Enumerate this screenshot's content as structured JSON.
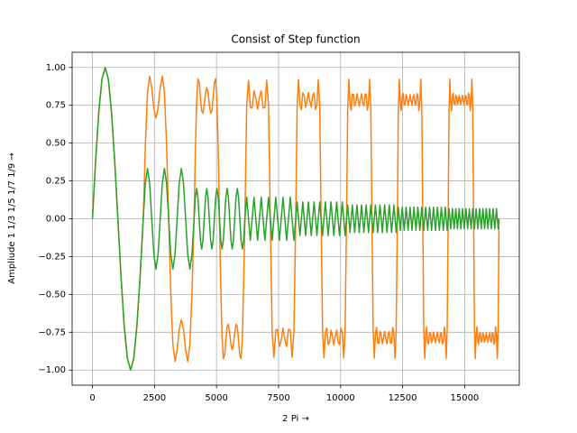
{
  "chart_data": {
    "type": "line",
    "title": "Consist of Step function",
    "title_color": "#0000ff",
    "xlabel": "2 Pi →",
    "ylabel": "Ampliude 1 1/3 1/5 1/7 1/9 →",
    "grid": true,
    "xlim": [
      -819,
      17202
    ],
    "ylim": [
      -1.1,
      1.1
    ],
    "xticks": [
      0,
      2500,
      5000,
      7500,
      10000,
      12500,
      15000
    ],
    "yticks": [
      {
        "value": -1,
        "label": "−1.00"
      },
      {
        "value": -0.75,
        "label": "−0.75"
      },
      {
        "value": -0.5,
        "label": "−0.50"
      },
      {
        "value": -0.25,
        "label": "−0.25"
      },
      {
        "value": 0,
        "label": "0.00"
      },
      {
        "value": 0.25,
        "label": "0.25"
      },
      {
        "value": 0.5,
        "label": "0.50"
      },
      {
        "value": 0.75,
        "label": "0.75"
      },
      {
        "value": 1,
        "label": "1.00"
      }
    ],
    "x": [
      0,
      128,
      256,
      384,
      512,
      640,
      768,
      896,
      1024,
      1152,
      1280,
      1408,
      1536,
      1664,
      1792,
      1920,
      2048,
      2133,
      2219,
      2304,
      2389,
      2475,
      2560,
      2645,
      2731,
      2816,
      2901,
      2987,
      3072,
      3157,
      3243,
      3328,
      3413,
      3499,
      3584,
      3669,
      3755,
      3840,
      3925,
      4011,
      4096,
      4147,
      4198,
      4250,
      4301,
      4352,
      4403,
      4454,
      4506,
      4557,
      4608,
      4659,
      4710,
      4762,
      4813,
      4864,
      4915,
      4966,
      5018,
      5069,
      5120,
      5171,
      5222,
      5274,
      5325,
      5376,
      5427,
      5478,
      5530,
      5581,
      5632,
      5683,
      5734,
      5786,
      5837,
      5888,
      5939,
      5990,
      6042,
      6093,
      6144,
      6217,
      6290,
      6363,
      6437,
      6510,
      6583,
      6656,
      6729,
      6802,
      6875,
      6949,
      7022,
      7095,
      7168,
      7241,
      7314,
      7387,
      7461,
      7534,
      7607,
      7680,
      7753,
      7826,
      7899,
      7973,
      8046,
      8119,
      8192,
      8249,
      8306,
      8363,
      8420,
      8476,
      8533,
      8590,
      8647,
      8704,
      8761,
      8818,
      8875,
      8932,
      8988,
      9045,
      9102,
      9159,
      9216,
      9273,
      9330,
      9387,
      9444,
      9500,
      9557,
      9614,
      9671,
      9728,
      9785,
      9842,
      9899,
      9956,
      10012,
      10069,
      10126,
      10183,
      10240,
      10287,
      10333,
      10380,
      10426,
      10473,
      10519,
      10566,
      10612,
      10659,
      10705,
      10752,
      10799,
      10845,
      10892,
      10938,
      10985,
      11031,
      11078,
      11124,
      11171,
      11217,
      11264,
      11311,
      11357,
      11404,
      11450,
      11497,
      11543,
      11590,
      11636,
      11683,
      11729,
      11776,
      11823,
      11869,
      11916,
      11962,
      12009,
      12055,
      12102,
      12148,
      12195,
      12241,
      12288,
      12327,
      12367,
      12406,
      12446,
      12485,
      12524,
      12564,
      12603,
      12642,
      12682,
      12721,
      12761,
      12800,
      12839,
      12879,
      12918,
      12958,
      12997,
      13036,
      13076,
      13115,
      13154,
      13194,
      13233,
      13273,
      13312,
      13351,
      13391,
      13430,
      13470,
      13509,
      13548,
      13588,
      13627,
      13666,
      13706,
      13745,
      13785,
      13824,
      13863,
      13903,
      13942,
      13982,
      14021,
      14060,
      14100,
      14139,
      14178,
      14218,
      14257,
      14297,
      14336,
      14370,
      14404,
      14438,
      14473,
      14507,
      14541,
      14575,
      14609,
      14643,
      14677,
      14711,
      14746,
      14780,
      14814,
      14848,
      14882,
      14916,
      14950,
      14985,
      15019,
      15053,
      15087,
      15121,
      15155,
      15189,
      15223,
      15258,
      15292,
      15326,
      15360,
      15394,
      15428,
      15462,
      15497,
      15531,
      15565,
      15599,
      15633,
      15667,
      15701,
      15735,
      15770,
      15804,
      15838,
      15872,
      15906,
      15940,
      15974,
      16009,
      16043,
      16077,
      16111,
      16145,
      16179,
      16213,
      16247,
      16282,
      16316,
      16350,
      16384
    ],
    "series": [
      {
        "color": "#ff7f0e",
        "values": [
          0,
          0.3827,
          0.7071,
          0.9239,
          1,
          0.9239,
          0.7071,
          0.3827,
          0,
          -0.3827,
          -0.7071,
          -0.9239,
          -1,
          -0.9239,
          -0.7071,
          -0.3827,
          0,
          0.4945,
          0.8333,
          0.9428,
          0.866,
          0.7302,
          0.6667,
          0.7302,
          0.866,
          0.9428,
          0.8333,
          0.4945,
          0,
          -0.4945,
          -0.8333,
          -0.9428,
          -0.866,
          -0.7302,
          -0.6667,
          -0.7302,
          -0.866,
          -0.9428,
          -0.8333,
          -0.4945,
          0,
          0.4491,
          0.7787,
          0.9246,
          0.9048,
          0.8014,
          0.712,
          0.6975,
          0.7552,
          0.8321,
          0.8667,
          0.8321,
          0.7552,
          0.6975,
          0.712,
          0.8014,
          0.9048,
          0.9246,
          0.7787,
          0.4491,
          0,
          -0.4491,
          -0.7787,
          -0.9246,
          -0.9048,
          -0.8014,
          -0.712,
          -0.6975,
          -0.7552,
          -0.8321,
          -0.8667,
          -0.8321,
          -0.7552,
          -0.6975,
          -0.712,
          -0.8014,
          -0.9048,
          -0.9246,
          -0.7787,
          -0.4491,
          0,
          0.7534,
          0.9153,
          0.7364,
          0.7314,
          0.845,
          0.8011,
          0.7238,
          0.8011,
          0.845,
          0.7314,
          0.7364,
          0.9153,
          0.7534,
          0,
          -0.7534,
          -0.9153,
          -0.7364,
          -0.7314,
          -0.845,
          -0.8011,
          -0.7238,
          -0.8011,
          -0.845,
          -0.7314,
          -0.7364,
          -0.9153,
          -0.7534,
          0,
          0.7388,
          0.9195,
          0.7508,
          0.7224,
          0.8311,
          0.8165,
          0.7366,
          0.7758,
          0.8349,
          0.7758,
          0.7366,
          0.8165,
          0.8311,
          0.7224,
          0.7508,
          0.9195,
          0.7388,
          0,
          -0.7388,
          -0.9195,
          -0.7508,
          -0.7224,
          -0.8311,
          -0.8165,
          -0.7366,
          -0.7758,
          -0.8349,
          -0.7758,
          -0.7366,
          -0.8165,
          -0.8311,
          -0.7224,
          -0.7508,
          -0.9195,
          -0.7388,
          0,
          0.7295,
          0.9216,
          0.7601,
          0.7177,
          0.8218,
          0.8238,
          0.7457,
          0.765,
          0.8264,
          0.7918,
          0.744,
          0.7918,
          0.8264,
          0.765,
          0.7457,
          0.8238,
          0.8218,
          0.7177,
          0.7601,
          0.9216,
          0.7295,
          0,
          -0.7295,
          -0.9216,
          -0.7601,
          -0.7177,
          -0.8218,
          -0.8238,
          -0.7457,
          -0.765,
          -0.8264,
          -0.7918,
          -0.744,
          -0.7918,
          -0.8264,
          -0.765,
          -0.7457,
          -0.8238,
          -0.8218,
          -0.7177,
          -0.7601,
          -0.9216,
          -0.7295,
          0,
          0.7228,
          0.9227,
          0.7669,
          0.7153,
          0.8152,
          0.8277,
          0.7521,
          0.7594,
          0.8202,
          0.7998,
          0.75,
          0.7807,
          0.8209,
          0.7807,
          0.75,
          0.7998,
          0.8202,
          0.7594,
          0.7521,
          0.8277,
          0.8152,
          0.7153,
          0.7669,
          0.9227,
          0.7228,
          0,
          -0.7228,
          -0.9227,
          -0.7669,
          -0.7153,
          -0.8152,
          -0.8277,
          -0.7521,
          -0.7594,
          -0.8202,
          -0.7998,
          -0.75,
          -0.7807,
          -0.8209,
          -0.7807,
          -0.75,
          -0.7998,
          -0.8202,
          -0.7594,
          -0.7521,
          -0.8277,
          -0.8152,
          -0.7153,
          -0.7669,
          -0.9227,
          -0.7228,
          0,
          0.7179,
          0.9237,
          0.7716,
          0.7137,
          0.8105,
          0.8302,
          0.7568,
          0.7558,
          0.8154,
          0.8044,
          0.7546,
          0.7748,
          0.8164,
          0.7888,
          0.7542,
          0.7888,
          0.8164,
          0.7748,
          0.7546,
          0.8044,
          0.8154,
          0.7558,
          0.7568,
          0.8302,
          0.8105,
          0.7137,
          0.7716,
          0.9237,
          0.7179,
          0,
          -0.7179,
          -0.9237,
          -0.7716,
          -0.7137,
          -0.8105,
          -0.8302,
          -0.7568,
          -0.7558,
          -0.8154,
          -0.8044,
          -0.7546,
          -0.7748,
          -0.8164,
          -0.7888,
          -0.7542,
          -0.7888,
          -0.8164,
          -0.7748,
          -0.7546,
          -0.8044,
          -0.8154,
          -0.7558,
          -0.7568,
          -0.8302,
          -0.8105,
          -0.7137,
          -0.7716,
          -0.9237,
          -0.7179,
          0
        ]
      },
      {
        "color": "#2ca02c",
        "values": [
          0,
          0.3827,
          0.7071,
          0.9239,
          1,
          0.9239,
          0.7071,
          0.3827,
          0,
          -0.3827,
          -0.7071,
          -0.9239,
          -1,
          -0.9239,
          -0.7071,
          -0.3827,
          0,
          0.2357,
          0.3333,
          0.2357,
          0,
          -0.2357,
          -0.3333,
          -0.2357,
          0,
          0.2357,
          0.3333,
          0.2357,
          0,
          -0.2357,
          -0.3333,
          -0.2357,
          0,
          0.2357,
          0.3333,
          0.2357,
          0,
          -0.2357,
          -0.3333,
          -0.2357,
          0,
          0.1414,
          0.2,
          0.1414,
          0,
          -0.1414,
          -0.2,
          -0.1414,
          0,
          0.1414,
          0.2,
          0.1414,
          0,
          -0.1414,
          -0.2,
          -0.1414,
          0,
          0.1414,
          0.2,
          0.1414,
          0,
          -0.1414,
          -0.2,
          -0.1414,
          0,
          0.1414,
          0.2,
          0.1414,
          0,
          -0.1414,
          -0.2,
          -0.1414,
          0,
          0.1414,
          0.2,
          0.1414,
          0,
          -0.1414,
          -0.2,
          -0.1414,
          0,
          0.1429,
          0,
          -0.1429,
          0,
          0.1429,
          0,
          -0.1429,
          0,
          0.1429,
          0,
          -0.1429,
          0,
          0.1429,
          0,
          -0.1429,
          0,
          0.1429,
          0,
          -0.1429,
          0,
          0.1429,
          0,
          -0.1429,
          0,
          0.1429,
          0,
          -0.1429,
          0,
          0.1111,
          0,
          -0.1111,
          0,
          0.1111,
          0,
          -0.1111,
          0,
          0.1111,
          0,
          -0.1111,
          0,
          0.1111,
          0,
          -0.1111,
          0,
          0.1111,
          0,
          -0.1111,
          0,
          0.1111,
          0,
          -0.1111,
          0,
          0.1111,
          0,
          -0.1111,
          0,
          0.1111,
          0,
          -0.1111,
          0,
          0.1111,
          0,
          -0.1111,
          0,
          0.0909,
          0,
          -0.0909,
          0,
          0.0909,
          0,
          -0.0909,
          0,
          0.0909,
          0,
          -0.0909,
          0,
          0.0909,
          0,
          -0.0909,
          0,
          0.0909,
          0,
          -0.0909,
          0,
          0.0909,
          0,
          -0.0909,
          0,
          0.0909,
          0,
          -0.0909,
          0,
          0.0909,
          0,
          -0.0909,
          0,
          0.0909,
          0,
          -0.0909,
          0,
          0.0909,
          0,
          -0.0909,
          0,
          0.0909,
          0,
          -0.0909,
          0,
          0.0769,
          0,
          -0.0769,
          0,
          0.0769,
          0,
          -0.0769,
          0,
          0.0769,
          0,
          -0.0769,
          0,
          0.0769,
          0,
          -0.0769,
          0,
          0.0769,
          0,
          -0.0769,
          0,
          0.0769,
          0,
          -0.0769,
          0,
          0.0769,
          0,
          -0.0769,
          0,
          0.0769,
          0,
          -0.0769,
          0,
          0.0769,
          0,
          -0.0769,
          0,
          0.0769,
          0,
          -0.0769,
          0,
          0.0769,
          0,
          -0.0769,
          0,
          0.0769,
          0,
          -0.0769,
          0,
          0.0769,
          0,
          -0.0769,
          0,
          0.0667,
          0,
          -0.0667,
          0,
          0.0667,
          0,
          -0.0667,
          0,
          0.0667,
          0,
          -0.0667,
          0,
          0.0667,
          0,
          -0.0667,
          0,
          0.0667,
          0,
          -0.0667,
          0,
          0.0667,
          0,
          -0.0667,
          0,
          0.0667,
          0,
          -0.0667,
          0,
          0.0667,
          0,
          -0.0667,
          0,
          0.0667,
          0,
          -0.0667,
          0,
          0.0667,
          0,
          -0.0667,
          0,
          0.0667,
          0,
          -0.0667,
          0,
          0.0667,
          0,
          -0.0667,
          0,
          0.0667,
          0,
          -0.0667,
          0,
          0.0667,
          0,
          -0.0667,
          0,
          0.0667,
          0,
          -0.0667,
          0
        ]
      }
    ]
  }
}
